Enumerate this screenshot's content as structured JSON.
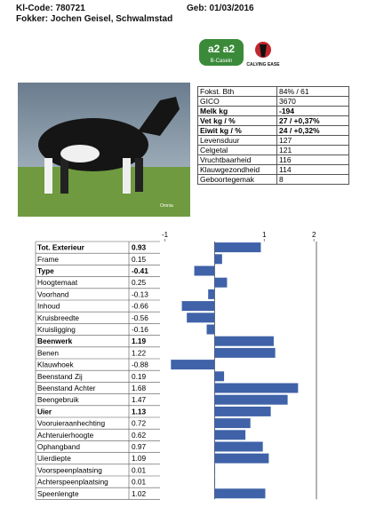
{
  "header": {
    "code": "Kl-Code: 780721",
    "birth": "Geb: 01/03/2016",
    "breeder": "Fokker: Jochen Geisel, Schwalmstad"
  },
  "logos": {
    "a2": "a2 a2",
    "casein": "B-Casein",
    "calving": "CALVING EASE"
  },
  "photo": {
    "credit": "Omnia"
  },
  "stats": [
    [
      "Fokst. Bth",
      "84% / 61"
    ],
    [
      "GICO",
      "3670"
    ],
    [
      "Melk kg",
      "-194"
    ],
    [
      "Vet kg / %",
      "27 / +0,37%"
    ],
    [
      "Eiwit kg / %",
      "24 / +0,32%"
    ],
    [
      "Levensduur",
      "127"
    ],
    [
      "Celgetal",
      "121"
    ],
    [
      "Vruchtbaarheid",
      "116"
    ],
    [
      "Klauwgezondheid",
      "114"
    ],
    [
      "Geboortegemak",
      "8"
    ]
  ],
  "chart_data": {
    "type": "bar",
    "orientation": "horizontal",
    "color": "#3f62a8",
    "categories": [
      "Tot. Exterieur",
      "Frame",
      "Type",
      "Hoogtemaat",
      "Voorhand",
      "Inhoud",
      "Kruisbreedte",
      "Kruisligging",
      "Beenwerk",
      "Benen",
      "Klauwhoek",
      "Beenstand Zij",
      "Beenstand Achter",
      "Beengebruik",
      "Uier",
      "Vooruieraanhechting",
      "Achteruierhoogte",
      "Ophangband",
      "Uierdiepte",
      "Voorspeenplaatsing",
      "Achterspeenplaatsing",
      "Speenlengte"
    ],
    "values": [
      0.93,
      0.15,
      -0.41,
      0.25,
      -0.13,
      -0.66,
      -0.56,
      -0.16,
      1.19,
      1.22,
      -0.88,
      0.19,
      1.68,
      1.47,
      1.13,
      0.72,
      0.62,
      0.97,
      1.09,
      0.01,
      0.01,
      1.02
    ],
    "xlim": [
      -1.1,
      2.05
    ],
    "xticks": [
      -1,
      1,
      2
    ]
  }
}
